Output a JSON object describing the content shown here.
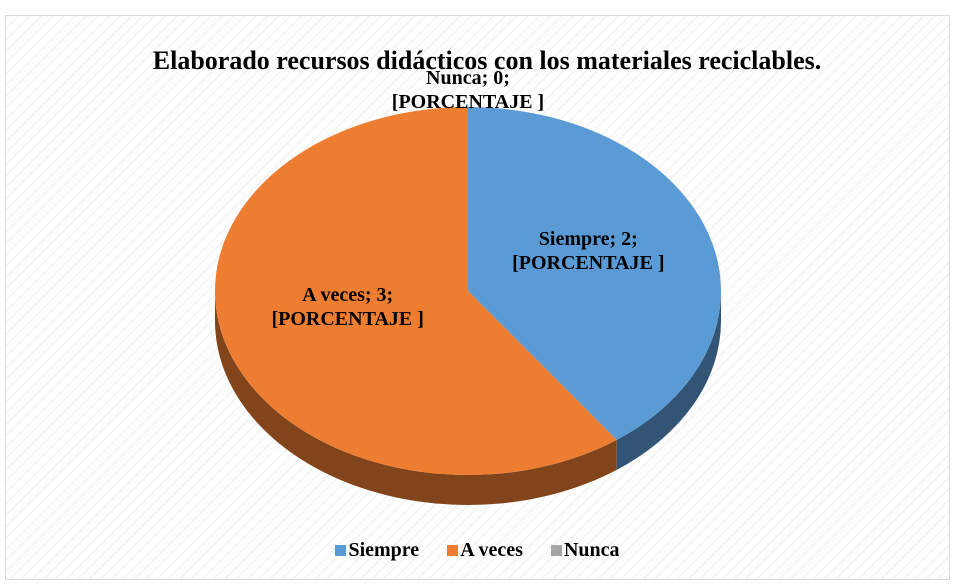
{
  "chart_data": {
    "type": "pie",
    "title": "Elaborado recursos didácticos con los materiales reciclables.",
    "categories": [
      "Siempre",
      "A veces",
      "Nunca"
    ],
    "values": [
      2,
      3,
      0
    ],
    "value_labels": [
      "Siempre; 2; [PORCENTAJE ]",
      "A veces; 3; [PORCENTAJE ]",
      "Nunca; 0; [PORCENTAJE ]"
    ],
    "colors": [
      "#5b9bd5",
      "#ed7d31",
      "#a5a5a5"
    ],
    "legend": "bottom"
  }
}
